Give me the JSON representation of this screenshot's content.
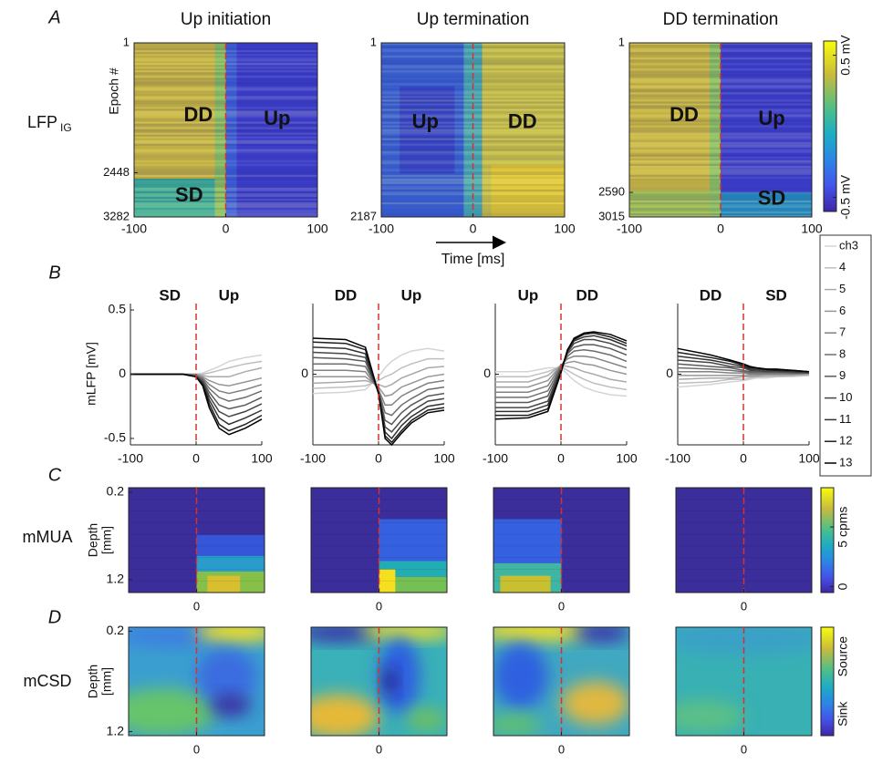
{
  "chart_data": [
    {
      "type": "heatmap",
      "panel": "A",
      "row_label": "LFP",
      "row_label_sub": "IG",
      "title": "Up initiation",
      "ylabel": "Epoch #",
      "xlim": [
        -100,
        100
      ],
      "xticks": [
        -100,
        0,
        100
      ],
      "ylim": [
        1,
        3282
      ],
      "yticks": [
        1,
        2448,
        3282
      ],
      "vline": 0,
      "annotations": [
        "DD",
        "Up",
        "SD"
      ]
    },
    {
      "type": "heatmap",
      "title": "Up termination",
      "xlabel": "Time [ms]",
      "xlim": [
        -100,
        100
      ],
      "xticks": [
        -100,
        0,
        100
      ],
      "ylim": [
        1,
        2187
      ],
      "yticks": [
        1,
        2187
      ],
      "vline": 0,
      "annotations": [
        "Up",
        "DD"
      ]
    },
    {
      "type": "heatmap",
      "title": "DD termination",
      "xlim": [
        -100,
        100
      ],
      "xticks": [
        -100,
        0,
        100
      ],
      "ylim": [
        1,
        3015
      ],
      "yticks": [
        1,
        2590,
        3015
      ],
      "vline": 0,
      "annotations": [
        "DD",
        "Up",
        "SD"
      ],
      "colorbar": {
        "lim": [
          -0.6,
          0.6
        ],
        "ticks": [
          {
            "value": 0.5,
            "label": "0.5 mV"
          },
          {
            "value": -0.5,
            "label": "-0.5 mV"
          }
        ]
      }
    },
    {
      "type": "line",
      "panel": "B",
      "ylabel": "mLFP [mV]",
      "annotations": [
        "SD",
        "Up"
      ],
      "x": [
        -100,
        -50,
        -20,
        0,
        10,
        20,
        35,
        50,
        75,
        100
      ],
      "xlim": [
        -100,
        100
      ],
      "xticks": [
        -100,
        0,
        100
      ],
      "ylim": [
        -0.55,
        0.55
      ],
      "yticks": [
        -0.5,
        0,
        0.5
      ],
      "vline": 0,
      "series": [
        {
          "color": "#d4d4d4",
          "values": [
            0,
            0,
            0,
            0,
            0.01,
            0.03,
            0.06,
            0.1,
            0.13,
            0.15
          ]
        },
        {
          "color": "#bfbfbf",
          "values": [
            0,
            0,
            0,
            0,
            0,
            0.01,
            0.03,
            0.05,
            0.08,
            0.1
          ]
        },
        {
          "color": "#aaaaaa",
          "values": [
            0,
            0,
            0,
            0,
            -0.01,
            -0.02,
            -0.02,
            -0.02,
            0.02,
            0.05
          ]
        },
        {
          "color": "#969696",
          "values": [
            0,
            0,
            0,
            0,
            -0.02,
            -0.05,
            -0.08,
            -0.09,
            -0.06,
            -0.03
          ]
        },
        {
          "color": "#828282",
          "values": [
            0,
            0,
            0,
            -0.01,
            -0.03,
            -0.08,
            -0.13,
            -0.15,
            -0.12,
            -0.08
          ]
        },
        {
          "color": "#6e6e6e",
          "values": [
            0,
            0,
            0,
            -0.01,
            -0.04,
            -0.11,
            -0.18,
            -0.21,
            -0.18,
            -0.13
          ]
        },
        {
          "color": "#5a5a5a",
          "values": [
            0,
            0,
            0,
            -0.01,
            -0.05,
            -0.14,
            -0.24,
            -0.27,
            -0.24,
            -0.18
          ]
        },
        {
          "color": "#464646",
          "values": [
            0,
            0,
            0,
            -0.02,
            -0.06,
            -0.17,
            -0.29,
            -0.33,
            -0.29,
            -0.23
          ]
        },
        {
          "color": "#323232",
          "values": [
            0,
            0,
            0,
            -0.02,
            -0.07,
            -0.2,
            -0.34,
            -0.39,
            -0.34,
            -0.28
          ]
        },
        {
          "color": "#1e1e1e",
          "values": [
            0,
            0,
            0,
            -0.02,
            -0.08,
            -0.23,
            -0.39,
            -0.44,
            -0.39,
            -0.32
          ]
        },
        {
          "color": "#000000",
          "values": [
            0,
            0,
            0,
            -0.02,
            -0.09,
            -0.26,
            -0.42,
            -0.47,
            -0.42,
            -0.35
          ]
        }
      ]
    },
    {
      "type": "line",
      "annotations": [
        "DD",
        "Up"
      ],
      "x": [
        -100,
        -50,
        -20,
        0,
        10,
        20,
        35,
        50,
        75,
        100
      ],
      "xlim": [
        -100,
        100
      ],
      "xticks": [
        -100,
        0,
        100
      ],
      "ylim": [
        -0.55,
        0.55
      ],
      "yticks": [
        0
      ],
      "vline": 0,
      "series": [
        {
          "color": "#d4d4d4",
          "values": [
            -0.15,
            -0.14,
            -0.12,
            -0.02,
            0.05,
            0.1,
            0.15,
            0.18,
            0.2,
            0.18
          ]
        },
        {
          "color": "#bfbfbf",
          "values": [
            -0.11,
            -0.1,
            -0.09,
            -0.05,
            -0.02,
            0,
            0.05,
            0.08,
            0.12,
            0.12
          ]
        },
        {
          "color": "#aaaaaa",
          "values": [
            -0.07,
            -0.06,
            -0.05,
            -0.08,
            -0.1,
            -0.08,
            -0.03,
            0,
            0.05,
            0.06
          ]
        },
        {
          "color": "#969696",
          "values": [
            -0.02,
            -0.02,
            -0.02,
            -0.1,
            -0.17,
            -0.16,
            -0.1,
            -0.07,
            -0.02,
            0
          ]
        },
        {
          "color": "#828282",
          "values": [
            0.03,
            0.03,
            0.02,
            -0.12,
            -0.24,
            -0.24,
            -0.17,
            -0.13,
            -0.07,
            -0.05
          ]
        },
        {
          "color": "#6e6e6e",
          "values": [
            0.08,
            0.08,
            0.06,
            -0.13,
            -0.3,
            -0.32,
            -0.24,
            -0.19,
            -0.12,
            -0.1
          ]
        },
        {
          "color": "#5a5a5a",
          "values": [
            0.13,
            0.12,
            0.1,
            -0.14,
            -0.36,
            -0.39,
            -0.3,
            -0.24,
            -0.17,
            -0.15
          ]
        },
        {
          "color": "#464646",
          "values": [
            0.17,
            0.16,
            0.13,
            -0.14,
            -0.41,
            -0.45,
            -0.36,
            -0.29,
            -0.21,
            -0.19
          ]
        },
        {
          "color": "#323232",
          "values": [
            0.21,
            0.2,
            0.16,
            -0.15,
            -0.45,
            -0.5,
            -0.4,
            -0.33,
            -0.25,
            -0.23
          ]
        },
        {
          "color": "#1e1e1e",
          "values": [
            0.25,
            0.24,
            0.19,
            -0.15,
            -0.48,
            -0.53,
            -0.44,
            -0.36,
            -0.28,
            -0.26
          ]
        },
        {
          "color": "#000000",
          "values": [
            0.28,
            0.27,
            0.21,
            -0.15,
            -0.5,
            -0.55,
            -0.46,
            -0.38,
            -0.3,
            -0.28
          ]
        }
      ]
    },
    {
      "type": "line",
      "annotations": [
        "Up",
        "DD"
      ],
      "x": [
        -100,
        -50,
        -20,
        0,
        10,
        20,
        35,
        50,
        75,
        100
      ],
      "xlim": [
        -100,
        100
      ],
      "xticks": [
        -100,
        0,
        100
      ],
      "ylim": [
        -0.55,
        0.55
      ],
      "yticks": [
        0
      ],
      "vline": 0,
      "series": [
        {
          "color": "#d4d4d4",
          "values": [
            0.02,
            0.02,
            0.05,
            0.05,
            0,
            -0.05,
            -0.1,
            -0.13,
            -0.16,
            -0.17
          ]
        },
        {
          "color": "#bfbfbf",
          "values": [
            -0.02,
            -0.02,
            0.02,
            0.06,
            0.03,
            0,
            -0.04,
            -0.07,
            -0.1,
            -0.12
          ]
        },
        {
          "color": "#aaaaaa",
          "values": [
            -0.06,
            -0.06,
            -0.01,
            0.07,
            0.06,
            0.05,
            0.02,
            0,
            -0.04,
            -0.06
          ]
        },
        {
          "color": "#969696",
          "values": [
            -0.1,
            -0.1,
            -0.05,
            0.07,
            0.09,
            0.1,
            0.08,
            0.07,
            0.03,
            0
          ]
        },
        {
          "color": "#828282",
          "values": [
            -0.14,
            -0.14,
            -0.09,
            0.07,
            0.12,
            0.14,
            0.14,
            0.13,
            0.09,
            0.05
          ]
        },
        {
          "color": "#6e6e6e",
          "values": [
            -0.18,
            -0.18,
            -0.13,
            0.06,
            0.14,
            0.18,
            0.19,
            0.18,
            0.15,
            0.1
          ]
        },
        {
          "color": "#5a5a5a",
          "values": [
            -0.22,
            -0.22,
            -0.17,
            0.05,
            0.16,
            0.21,
            0.23,
            0.23,
            0.2,
            0.15
          ]
        },
        {
          "color": "#464646",
          "values": [
            -0.26,
            -0.26,
            -0.21,
            0.04,
            0.17,
            0.24,
            0.27,
            0.27,
            0.24,
            0.19
          ]
        },
        {
          "color": "#323232",
          "values": [
            -0.29,
            -0.29,
            -0.24,
            0.03,
            0.18,
            0.26,
            0.29,
            0.3,
            0.27,
            0.22
          ]
        },
        {
          "color": "#1e1e1e",
          "values": [
            -0.32,
            -0.32,
            -0.27,
            0.02,
            0.19,
            0.27,
            0.31,
            0.32,
            0.29,
            0.24
          ]
        },
        {
          "color": "#000000",
          "values": [
            -0.35,
            -0.34,
            -0.29,
            0.01,
            0.19,
            0.28,
            0.32,
            0.33,
            0.31,
            0.26
          ]
        }
      ]
    },
    {
      "type": "line",
      "annotations": [
        "DD",
        "SD"
      ],
      "x": [
        -100,
        -50,
        -20,
        0,
        10,
        20,
        35,
        50,
        75,
        100
      ],
      "xlim": [
        -100,
        100
      ],
      "xticks": [
        -100,
        0,
        100
      ],
      "ylim": [
        -0.55,
        0.55
      ],
      "yticks": [
        0
      ],
      "vline": 0,
      "legend": true,
      "series": [
        {
          "name": "ch3",
          "color": "#d4d4d4",
          "values": [
            -0.1,
            -0.08,
            -0.06,
            -0.05,
            -0.04,
            -0.03,
            -0.03,
            -0.02,
            -0.02,
            -0.01
          ]
        },
        {
          "name": "4",
          "color": "#bfbfbf",
          "values": [
            -0.07,
            -0.06,
            -0.04,
            -0.04,
            -0.03,
            -0.02,
            -0.02,
            -0.02,
            -0.01,
            -0.01
          ]
        },
        {
          "name": "5",
          "color": "#aaaaaa",
          "values": [
            -0.04,
            -0.03,
            -0.03,
            -0.02,
            -0.02,
            -0.02,
            -0.01,
            -0.01,
            -0.01,
            0
          ]
        },
        {
          "name": "6",
          "color": "#969696",
          "values": [
            -0.01,
            -0.01,
            -0.01,
            -0.01,
            -0.01,
            -0.01,
            0,
            0,
            0,
            0
          ]
        },
        {
          "name": "7",
          "color": "#828282",
          "values": [
            0.02,
            0.02,
            0.01,
            0.01,
            0,
            0,
            0,
            0,
            0,
            0.01
          ]
        },
        {
          "name": "8",
          "color": "#6e6e6e",
          "values": [
            0.05,
            0.04,
            0.03,
            0.02,
            0.01,
            0.01,
            0.01,
            0.01,
            0.01,
            0.01
          ]
        },
        {
          "name": "9",
          "color": "#5a5a5a",
          "values": [
            0.08,
            0.06,
            0.05,
            0.03,
            0.02,
            0.02,
            0.02,
            0.02,
            0.01,
            0.01
          ]
        },
        {
          "name": "10",
          "color": "#464646",
          "values": [
            0.11,
            0.09,
            0.06,
            0.05,
            0.03,
            0.03,
            0.02,
            0.02,
            0.02,
            0.01
          ]
        },
        {
          "name": "11",
          "color": "#323232",
          "values": [
            0.14,
            0.11,
            0.08,
            0.06,
            0.04,
            0.04,
            0.03,
            0.03,
            0.02,
            0.02
          ]
        },
        {
          "name": "12",
          "color": "#1e1e1e",
          "values": [
            0.17,
            0.13,
            0.1,
            0.07,
            0.05,
            0.05,
            0.04,
            0.03,
            0.03,
            0.02
          ]
        },
        {
          "name": "13",
          "color": "#000000",
          "values": [
            0.2,
            0.15,
            0.11,
            0.08,
            0.06,
            0.05,
            0.04,
            0.04,
            0.03,
            0.02
          ]
        }
      ]
    },
    {
      "type": "heatmap",
      "panel": "C",
      "row_label": "mMUA",
      "ylabel": [
        "Depth",
        "[mm]"
      ],
      "xlim": [
        -100,
        100
      ],
      "xticks": [
        0
      ],
      "ylim": [
        0.15,
        1.35
      ],
      "yticks": [
        0.2,
        1.2
      ],
      "vline": 0
    },
    {
      "type": "heatmap",
      "xlim": [
        -100,
        100
      ],
      "xticks": [
        0
      ],
      "ylim": [
        0.15,
        1.35
      ],
      "yticks": [],
      "vline": 0
    },
    {
      "type": "heatmap",
      "xlim": [
        -100,
        100
      ],
      "xticks": [
        0
      ],
      "ylim": [
        0.15,
        1.35
      ],
      "yticks": [],
      "vline": 0
    },
    {
      "type": "heatmap",
      "xlim": [
        -100,
        100
      ],
      "xticks": [
        0
      ],
      "ylim": [
        0.15,
        1.35
      ],
      "yticks": [],
      "vline": 0,
      "colorbar": {
        "lim": [
          -0.5,
          8.3
        ],
        "ticks": [
          {
            "value": 5,
            "label": "5 cpms"
          },
          0
        ]
      }
    },
    {
      "type": "heatmap",
      "panel": "D",
      "row_label": "mCSD",
      "ylabel": [
        "Depth",
        "[mm]"
      ],
      "xlim": [
        -100,
        100
      ],
      "xticks": [
        0
      ],
      "ylim": [
        0.16,
        1.24
      ],
      "yticks": [
        0.2,
        1.2
      ],
      "vline": 0
    },
    {
      "type": "heatmap",
      "xlim": [
        -100,
        100
      ],
      "xticks": [
        0
      ],
      "ylim": [
        0.16,
        1.24
      ],
      "yticks": [],
      "vline": 0
    },
    {
      "type": "heatmap",
      "xlim": [
        -100,
        100
      ],
      "xticks": [
        0
      ],
      "ylim": [
        0.16,
        1.24
      ],
      "yticks": [],
      "vline": 0
    },
    {
      "type": "heatmap",
      "xlim": [
        -100,
        100
      ],
      "xticks": [
        0
      ],
      "ylim": [
        0.16,
        1.24
      ],
      "yticks": [],
      "vline": 0,
      "colorbar": {
        "labels": [
          "Source",
          "Sink"
        ]
      }
    }
  ]
}
